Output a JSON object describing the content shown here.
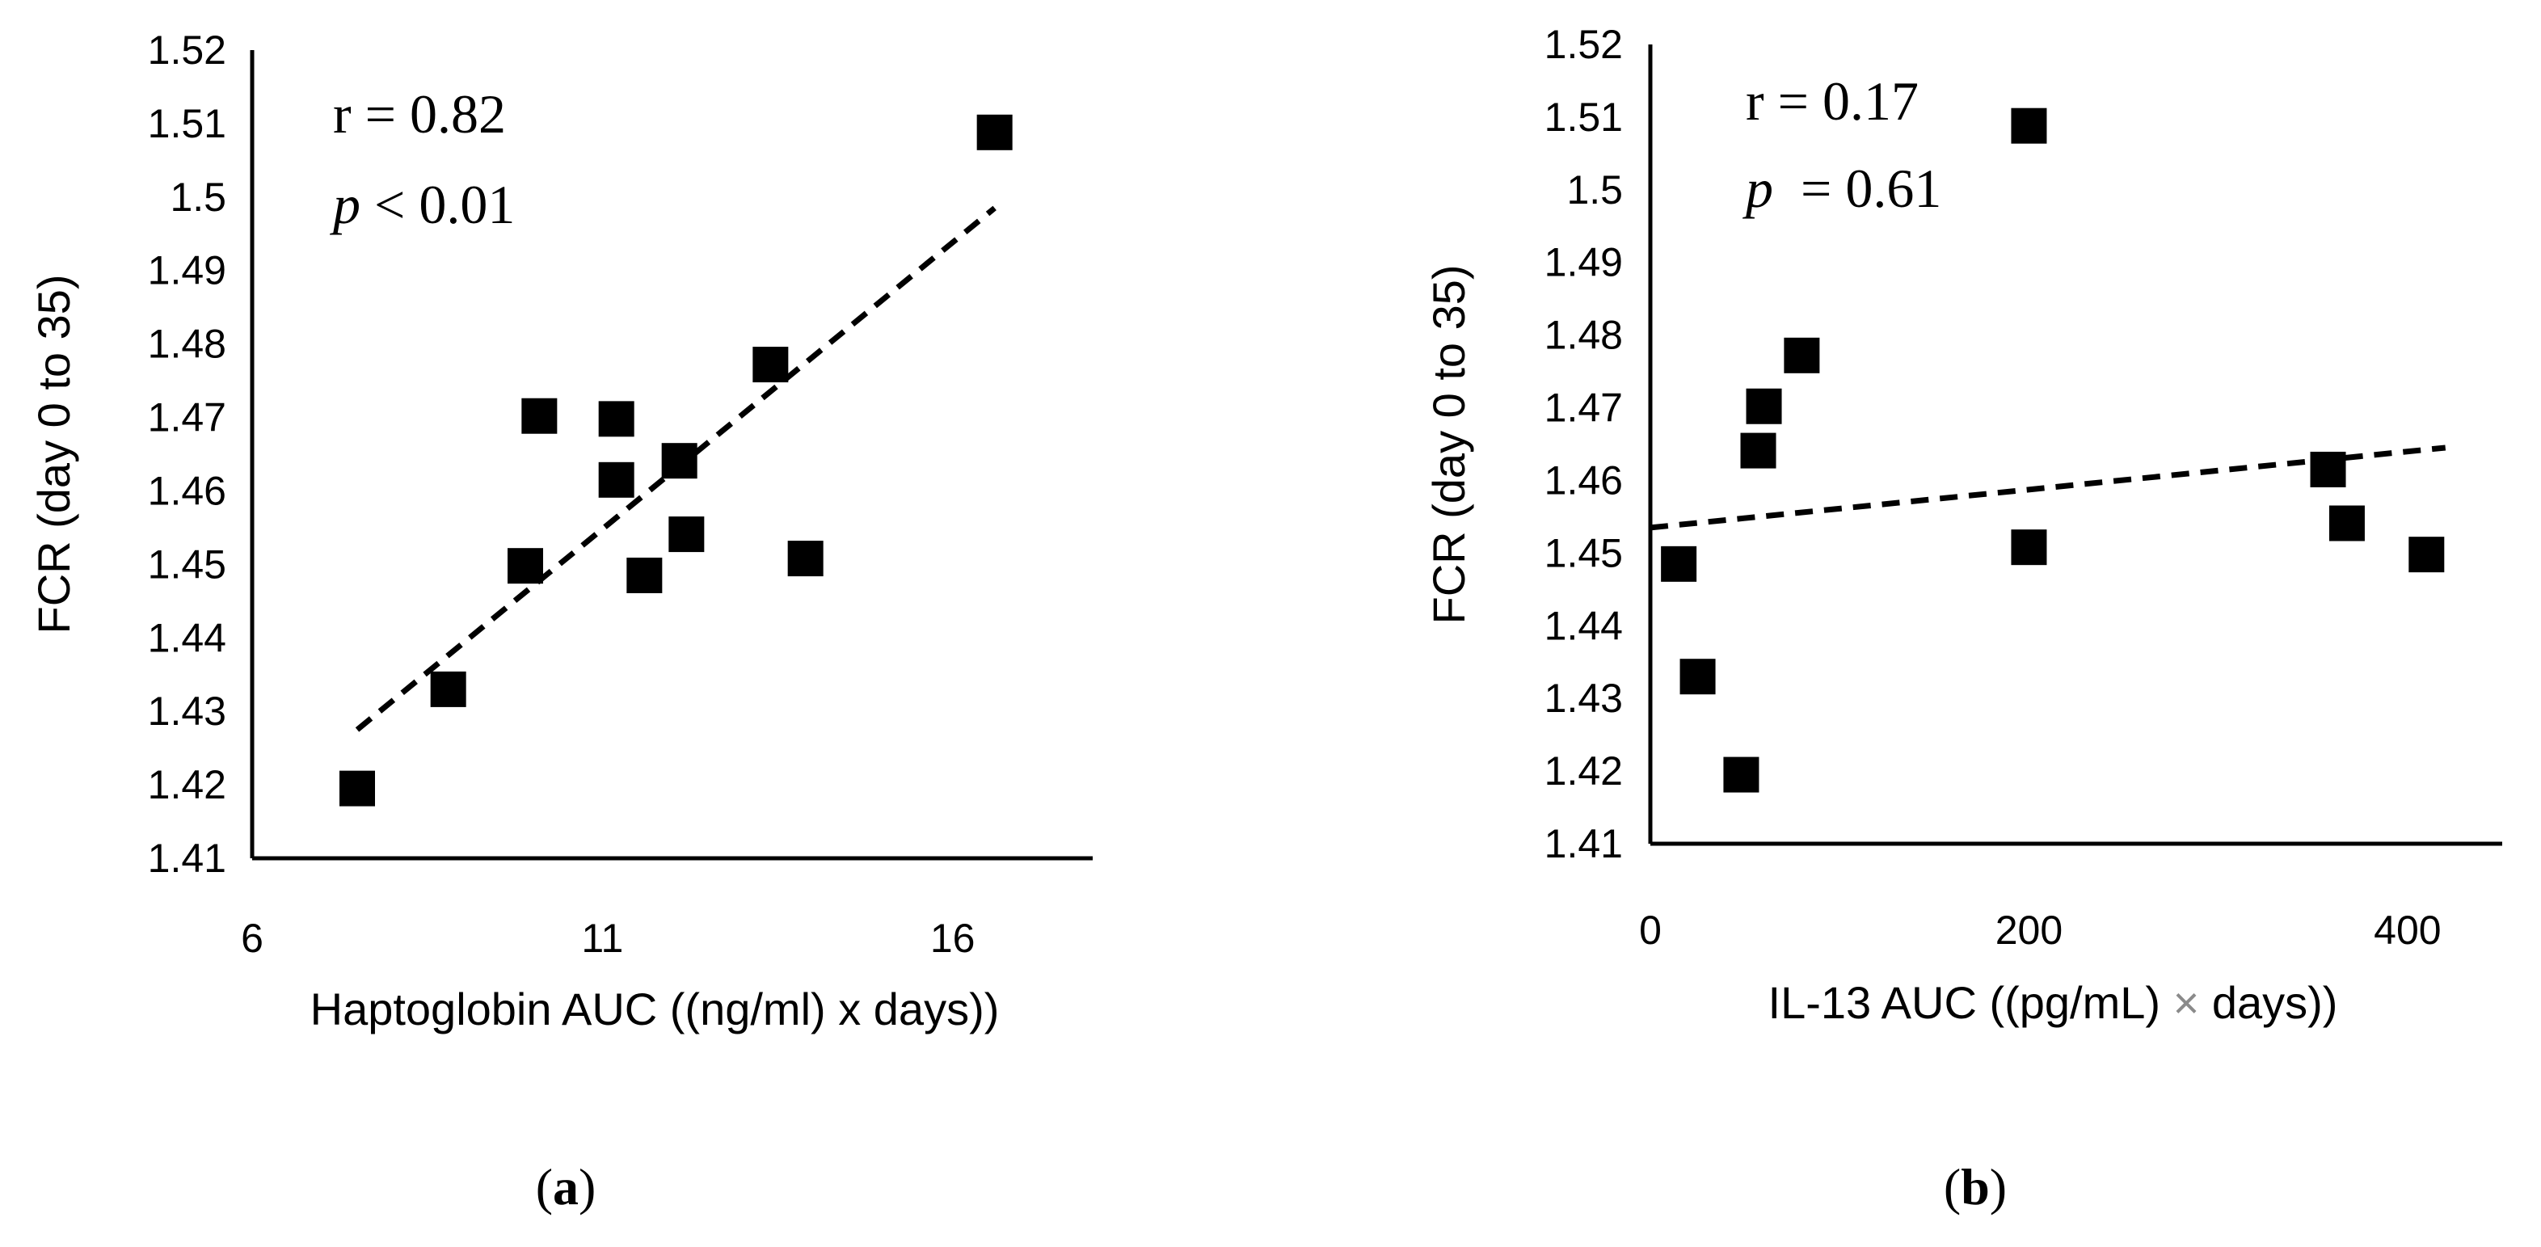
{
  "chart_data": [
    {
      "type": "scatter",
      "panel_label": "a",
      "xlabel": "Haptoglobin AUC ((ng/ml) x days))",
      "ylabel": "FCR (day 0 to 35)",
      "xlim": [
        6,
        18
      ],
      "ylim": [
        1.41,
        1.52
      ],
      "xticks": [
        "6",
        "11",
        "16"
      ],
      "xtick_values": [
        6,
        11,
        16
      ],
      "yticks": [
        "1.41",
        "1.42",
        "1.43",
        "1.44",
        "1.45",
        "1.46",
        "1.47",
        "1.48",
        "1.49",
        "1.5",
        "1.51",
        "1.52"
      ],
      "ytick_values": [
        1.41,
        1.42,
        1.43,
        1.44,
        1.45,
        1.46,
        1.47,
        1.48,
        1.49,
        1.5,
        1.51,
        1.52
      ],
      "r_text": "r = 0.82",
      "p_symbol": "p",
      "p_rest": " < 0.01",
      "points": [
        {
          "x": 7.5,
          "y": 1.4195
        },
        {
          "x": 8.8,
          "y": 1.433
        },
        {
          "x": 9.9,
          "y": 1.4498
        },
        {
          "x": 10.1,
          "y": 1.4702
        },
        {
          "x": 11.2,
          "y": 1.4698
        },
        {
          "x": 11.2,
          "y": 1.4615
        },
        {
          "x": 11.6,
          "y": 1.4485
        },
        {
          "x": 12.1,
          "y": 1.4641
        },
        {
          "x": 12.2,
          "y": 1.4541
        },
        {
          "x": 13.4,
          "y": 1.4772
        },
        {
          "x": 13.9,
          "y": 1.4508
        },
        {
          "x": 16.6,
          "y": 1.5088
        }
      ],
      "trendline": {
        "x": [
          7.5,
          16.6
        ],
        "y": [
          1.4275,
          1.4985
        ],
        "style": "dashed"
      }
    },
    {
      "type": "scatter",
      "panel_label": "b",
      "xlabel_pre": "IL-13 AUC ((pg/mL) ",
      "xlabel_x": "×",
      "xlabel_post": " days))",
      "ylabel": "FCR (day 0 to 35)",
      "xlim": [
        0,
        450
      ],
      "ylim": [
        1.41,
        1.52
      ],
      "xticks": [
        "0",
        "200",
        "400"
      ],
      "xtick_values": [
        0,
        200,
        400
      ],
      "yticks": [
        "1.41",
        "1.42",
        "1.43",
        "1.44",
        "1.45",
        "1.46",
        "1.47",
        "1.48",
        "1.49",
        "1.5",
        "1.51",
        "1.52"
      ],
      "ytick_values": [
        1.41,
        1.42,
        1.43,
        1.44,
        1.45,
        1.46,
        1.47,
        1.48,
        1.49,
        1.5,
        1.51,
        1.52
      ],
      "r_text": "r = 0.17",
      "p_symbol": "p",
      "p_rest": "  = 0.61",
      "points": [
        {
          "x": 15,
          "y": 1.4485
        },
        {
          "x": 25,
          "y": 1.433
        },
        {
          "x": 48,
          "y": 1.4195
        },
        {
          "x": 57,
          "y": 1.4641
        },
        {
          "x": 60,
          "y": 1.4702
        },
        {
          "x": 80,
          "y": 1.4772
        },
        {
          "x": 200,
          "y": 1.5088
        },
        {
          "x": 200,
          "y": 1.4508
        },
        {
          "x": 358,
          "y": 1.4615
        },
        {
          "x": 368,
          "y": 1.4541
        },
        {
          "x": 410,
          "y": 1.4498
        }
      ],
      "trendline": {
        "x": [
          0,
          420
        ],
        "y": [
          1.4535,
          1.4645
        ],
        "style": "dashed"
      }
    }
  ]
}
